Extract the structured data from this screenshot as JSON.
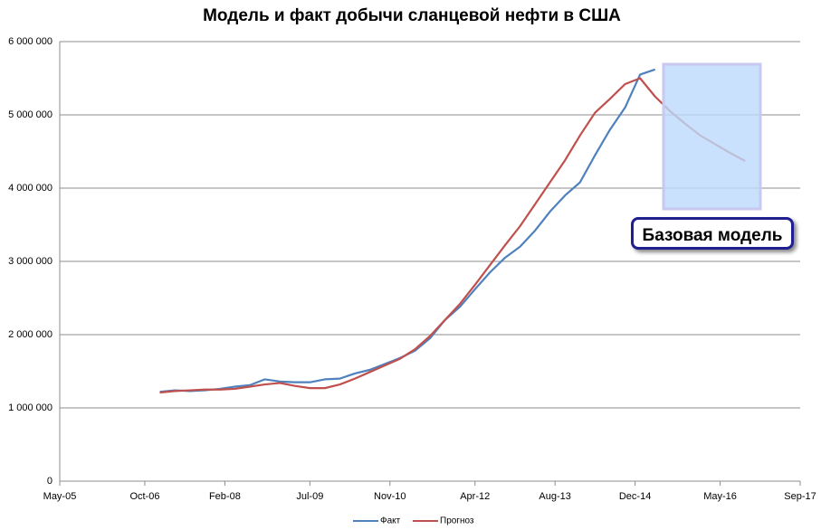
{
  "chart_data": {
    "type": "line",
    "title": "Модель и факт добычи сланцевой нефти в США",
    "annotation": "Базовая модель",
    "x": [
      "2007-01",
      "2007-04",
      "2007-07",
      "2007-10",
      "2008-01",
      "2008-04",
      "2008-07",
      "2008-10",
      "2009-01",
      "2009-04",
      "2009-07",
      "2009-10",
      "2010-01",
      "2010-04",
      "2010-07",
      "2010-10",
      "2011-01",
      "2011-04",
      "2011-07",
      "2011-10",
      "2012-01",
      "2012-04",
      "2012-07",
      "2012-10",
      "2013-01",
      "2013-04",
      "2013-07",
      "2013-10",
      "2014-01",
      "2014-04",
      "2014-07",
      "2014-10",
      "2015-01",
      "2015-04",
      "2015-07",
      "2015-10",
      "2016-01",
      "2016-04",
      "2016-07",
      "2016-10"
    ],
    "series": [
      {
        "name": "Факт",
        "color": "#4f81bd",
        "values": [
          1220000,
          1240000,
          1230000,
          1240000,
          1260000,
          1290000,
          1310000,
          1390000,
          1360000,
          1350000,
          1350000,
          1390000,
          1400000,
          1470000,
          1520000,
          1600000,
          1680000,
          1780000,
          1950000,
          2200000,
          2380000,
          2620000,
          2850000,
          3050000,
          3200000,
          3420000,
          3680000,
          3900000,
          4080000,
          4450000,
          4800000,
          5100000,
          5550000,
          5620000,
          null,
          null,
          null,
          null,
          null,
          null
        ]
      },
      {
        "name": "Прогноз",
        "color": "#c0504d",
        "values": [
          1210000,
          1230000,
          1240000,
          1250000,
          1250000,
          1260000,
          1290000,
          1320000,
          1340000,
          1300000,
          1270000,
          1270000,
          1320000,
          1400000,
          1490000,
          1580000,
          1670000,
          1800000,
          1980000,
          2200000,
          2420000,
          2680000,
          2950000,
          3220000,
          3480000,
          3780000,
          4080000,
          4380000,
          4720000,
          5030000,
          5220000,
          5420000,
          5500000,
          5250000,
          5050000,
          4880000,
          4720000,
          4600000,
          4480000,
          4370000
        ]
      }
    ],
    "xlim": [
      "2005-05",
      "2017-09"
    ],
    "xticks": [
      {
        "value": "2005-05",
        "label": "May-05"
      },
      {
        "value": "2006-10",
        "label": "Oct-06"
      },
      {
        "value": "2008-02",
        "label": "Feb-08"
      },
      {
        "value": "2009-07",
        "label": "Jul-09"
      },
      {
        "value": "2010-11",
        "label": "Nov-10"
      },
      {
        "value": "2012-04",
        "label": "Apr-12"
      },
      {
        "value": "2013-08",
        "label": "Aug-13"
      },
      {
        "value": "2014-12",
        "label": "Dec-14"
      },
      {
        "value": "2016-05",
        "label": "May-16"
      },
      {
        "value": "2017-09",
        "label": "Sep-17"
      }
    ],
    "ylim": [
      0,
      6000000
    ],
    "yticks": [
      0,
      {
        "value": 1000000,
        "label": "1 000 000"
      },
      {
        "value": 2000000,
        "label": "2 000 000"
      },
      {
        "value": 3000000,
        "label": "3 000 000"
      },
      {
        "value": 4000000,
        "label": "4 000 000"
      },
      {
        "value": 5000000,
        "label": "5 000 000"
      },
      {
        "value": 6000000,
        "label": "6 000 000"
      }
    ],
    "grid": true,
    "legend": "bottom"
  }
}
